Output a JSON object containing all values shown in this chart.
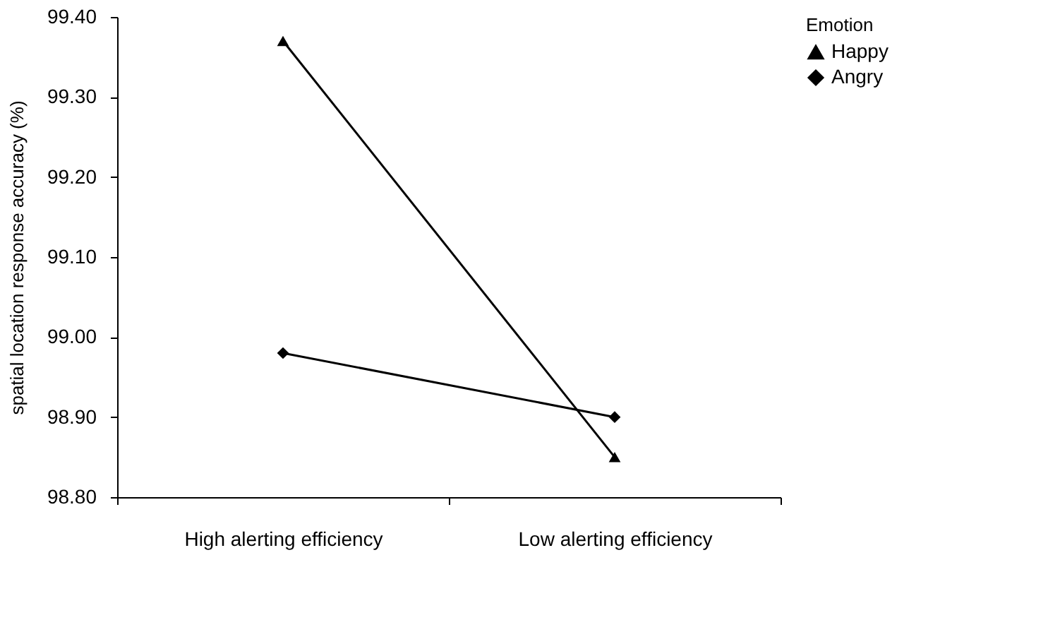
{
  "chart_data": {
    "type": "line",
    "ylabel": "spatial location response accuracy (%)",
    "legend_title": "Emotion",
    "categories": [
      "High alerting efficiency",
      "Low alerting efficiency"
    ],
    "series": [
      {
        "name": "Happy",
        "color": "#000000",
        "marker": "triangle",
        "values": [
          99.37,
          98.85
        ]
      },
      {
        "name": "Angry",
        "color": "#000000",
        "marker": "diamond",
        "values": [
          98.98,
          98.9
        ]
      }
    ],
    "ylim": [
      98.8,
      99.4
    ],
    "yticks": [
      {
        "value": 98.8,
        "label": "98.80"
      },
      {
        "value": 98.9,
        "label": "98.90"
      },
      {
        "value": 99.0,
        "label": "99.00"
      },
      {
        "value": 99.1,
        "label": "99.10"
      },
      {
        "value": 99.2,
        "label": "99.20"
      },
      {
        "value": 99.3,
        "label": "99.30"
      },
      {
        "value": 99.4,
        "label": "99.40"
      }
    ],
    "grid": false,
    "legend": "top right",
    "line_style": "solid"
  }
}
